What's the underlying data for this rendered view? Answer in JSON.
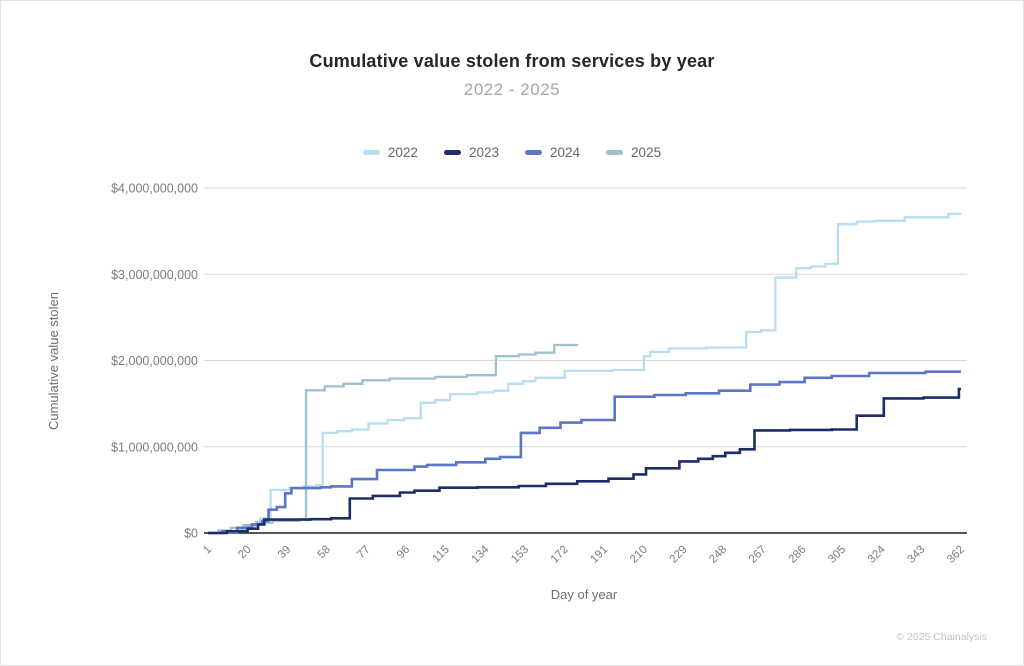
{
  "page": {
    "footer": "© 2025 Chainalysis",
    "background": "#ffffff",
    "border_color": "#e4e4e8"
  },
  "style_colors": {
    "title": "#25252b",
    "subtitle": "#a5a5aa",
    "tick_label": "#7b7b81",
    "gridline": "#d7d7da",
    "baseline": "#55555a"
  },
  "chart_data": {
    "type": "line",
    "line_style": "step-after",
    "title": "Cumulative value stolen from services by year",
    "subtitle": "2022 - 2025",
    "xlabel": "Day of year",
    "ylabel": "Cumulative value stolen",
    "legend_position": "top",
    "grid": "horizontal-only",
    "xlim": [
      1,
      362
    ],
    "ylim_usd": [
      0,
      4000000000
    ],
    "x_ticks": [
      1,
      20,
      39,
      58,
      77,
      96,
      115,
      134,
      153,
      172,
      191,
      210,
      229,
      248,
      267,
      286,
      305,
      324,
      343,
      362
    ],
    "y_ticks": [
      {
        "value_billions": 0,
        "label": "$0"
      },
      {
        "value_billions": 1,
        "label": "$1,000,000,000"
      },
      {
        "value_billions": 2,
        "label": "$2,000,000,000"
      },
      {
        "value_billions": 3,
        "label": "$3,000,000,000"
      },
      {
        "value_billions": 4,
        "label": "$4,000,000,000"
      }
    ],
    "units": "USD billions",
    "series": [
      {
        "name": "2022",
        "color": "#b9ddf1",
        "stroke_width": 2.3,
        "points_day_value_billions": [
          [
            1,
            0
          ],
          [
            8,
            0.01
          ],
          [
            15,
            0.04
          ],
          [
            20,
            0.08
          ],
          [
            24,
            0.13
          ],
          [
            26,
            0.17
          ],
          [
            31,
            0.5
          ],
          [
            40,
            0.52
          ],
          [
            47,
            0.54
          ],
          [
            53,
            0.555
          ],
          [
            56,
            1.16
          ],
          [
            63,
            1.18
          ],
          [
            70,
            1.2
          ],
          [
            78,
            1.27
          ],
          [
            87,
            1.31
          ],
          [
            95,
            1.33
          ],
          [
            103,
            1.51
          ],
          [
            110,
            1.54
          ],
          [
            117,
            1.61
          ],
          [
            130,
            1.63
          ],
          [
            138,
            1.65
          ],
          [
            145,
            1.73
          ],
          [
            152,
            1.76
          ],
          [
            158,
            1.8
          ],
          [
            172,
            1.88
          ],
          [
            195,
            1.89
          ],
          [
            210,
            2.05
          ],
          [
            213,
            2.1
          ],
          [
            222,
            2.14
          ],
          [
            240,
            2.15
          ],
          [
            259,
            2.33
          ],
          [
            266,
            2.35
          ],
          [
            273,
            2.96
          ],
          [
            283,
            3.07
          ],
          [
            290,
            3.09
          ],
          [
            297,
            3.12
          ],
          [
            303,
            3.58
          ],
          [
            312,
            3.61
          ],
          [
            320,
            3.62
          ],
          [
            335,
            3.66
          ],
          [
            356,
            3.7
          ],
          [
            362,
            3.7
          ]
        ]
      },
      {
        "name": "2023",
        "color": "#1d2d6b",
        "stroke_width": 2.6,
        "points_day_value_billions": [
          [
            1,
            0
          ],
          [
            10,
            0.02
          ],
          [
            20,
            0.05
          ],
          [
            25,
            0.1
          ],
          [
            28,
            0.155
          ],
          [
            50,
            0.16
          ],
          [
            60,
            0.17
          ],
          [
            69,
            0.4
          ],
          [
            80,
            0.43
          ],
          [
            93,
            0.47
          ],
          [
            100,
            0.49
          ],
          [
            112,
            0.525
          ],
          [
            130,
            0.53
          ],
          [
            150,
            0.545
          ],
          [
            163,
            0.57
          ],
          [
            178,
            0.6
          ],
          [
            193,
            0.63
          ],
          [
            205,
            0.68
          ],
          [
            211,
            0.75
          ],
          [
            227,
            0.83
          ],
          [
            236,
            0.86
          ],
          [
            243,
            0.89
          ],
          [
            249,
            0.93
          ],
          [
            256,
            0.97
          ],
          [
            263,
            1.19
          ],
          [
            280,
            1.195
          ],
          [
            300,
            1.2
          ],
          [
            312,
            1.36
          ],
          [
            325,
            1.56
          ],
          [
            344,
            1.57
          ],
          [
            361,
            1.67
          ],
          [
            362,
            1.67
          ]
        ]
      },
      {
        "name": "2024",
        "color": "#5b76c6",
        "stroke_width": 2.6,
        "points_day_value_billions": [
          [
            1,
            0
          ],
          [
            8,
            0.02
          ],
          [
            15,
            0.06
          ],
          [
            22,
            0.1
          ],
          [
            27,
            0.14
          ],
          [
            30,
            0.27
          ],
          [
            34,
            0.3
          ],
          [
            38,
            0.46
          ],
          [
            41,
            0.52
          ],
          [
            55,
            0.53
          ],
          [
            60,
            0.54
          ],
          [
            70,
            0.625
          ],
          [
            82,
            0.73
          ],
          [
            100,
            0.77
          ],
          [
            106,
            0.79
          ],
          [
            120,
            0.82
          ],
          [
            134,
            0.86
          ],
          [
            141,
            0.88
          ],
          [
            151,
            1.16
          ],
          [
            160,
            1.22
          ],
          [
            170,
            1.28
          ],
          [
            180,
            1.31
          ],
          [
            196,
            1.58
          ],
          [
            215,
            1.6
          ],
          [
            230,
            1.62
          ],
          [
            246,
            1.65
          ],
          [
            261,
            1.72
          ],
          [
            275,
            1.75
          ],
          [
            287,
            1.8
          ],
          [
            300,
            1.82
          ],
          [
            318,
            1.855
          ],
          [
            345,
            1.87
          ],
          [
            362,
            1.87
          ]
        ]
      },
      {
        "name": "2025",
        "color": "#9fc0cd",
        "stroke_width": 2.3,
        "points_day_value_billions": [
          [
            1,
            0
          ],
          [
            6,
            0.03
          ],
          [
            12,
            0.06
          ],
          [
            18,
            0.09
          ],
          [
            24,
            0.12
          ],
          [
            32,
            0.14
          ],
          [
            45,
            0.16
          ],
          [
            48,
            1.655
          ],
          [
            57,
            1.7
          ],
          [
            66,
            1.73
          ],
          [
            75,
            1.77
          ],
          [
            88,
            1.79
          ],
          [
            110,
            1.81
          ],
          [
            125,
            1.83
          ],
          [
            139,
            2.05
          ],
          [
            150,
            2.07
          ],
          [
            158,
            2.09
          ],
          [
            167,
            2.18
          ],
          [
            178,
            2.19
          ]
        ]
      }
    ]
  }
}
